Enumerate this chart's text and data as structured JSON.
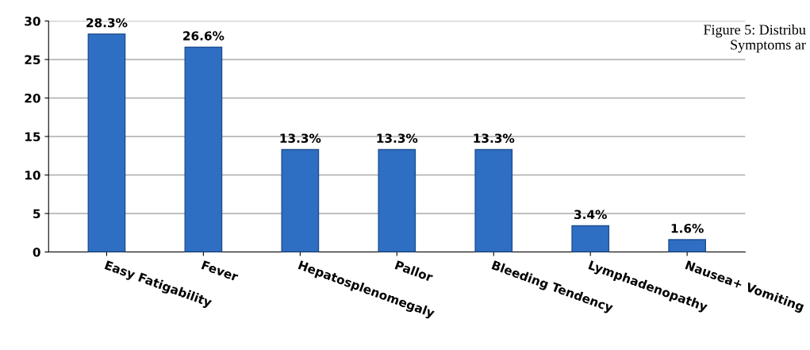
{
  "chart_data": {
    "type": "bar",
    "categories": [
      "Easy Fatigability",
      "Fever",
      "Hepatosplenomegaly",
      "Pallor",
      "Bleeding Tendency",
      "Lymphadenopathy",
      "Nausea+ Vomiting"
    ],
    "values": [
      28.3,
      26.6,
      13.3,
      13.3,
      13.3,
      3.4,
      1.6
    ],
    "value_labels": [
      "28.3%",
      "26.6%",
      "13.3%",
      "13.3%",
      "13.3%",
      "3.4%",
      "1.6%"
    ],
    "color": "#2e6fc4",
    "ylim": [
      0,
      30
    ],
    "yticks": [
      0,
      5,
      10,
      15,
      20,
      25,
      30
    ],
    "grid": "y",
    "legend": false,
    "annotations": [
      "Figure 5: Distribu\nSymptoms ar"
    ]
  }
}
